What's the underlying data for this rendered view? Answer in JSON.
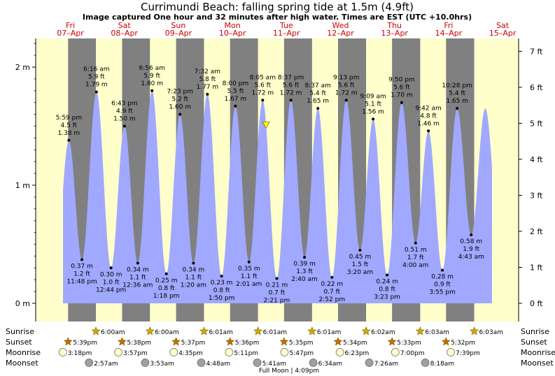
{
  "title": "Currimundi Beach: falling  spring tide at 1.5m (4.9ft)",
  "subtitle": "Image captured One hour and 32 minutes after high water. Times are EST (UTC +10.0hrs)",
  "chart_data": {
    "type": "area",
    "y_left_ticks": [
      "0 m",
      "1 m",
      "2 m"
    ],
    "y_right_ticks": [
      "0 ft",
      "1 ft",
      "2 ft",
      "3 ft",
      "4 ft",
      "5 ft",
      "6 ft",
      "7 ft"
    ],
    "ylim_m": [
      0,
      2.25
    ],
    "days": [
      {
        "dow": "Fri",
        "date": "07–Apr"
      },
      {
        "dow": "Sat",
        "date": "08–Apr"
      },
      {
        "dow": "Sun",
        "date": "09–Apr"
      },
      {
        "dow": "Mon",
        "date": "10–Apr"
      },
      {
        "dow": "Tue",
        "date": "11–Apr"
      },
      {
        "dow": "Wed",
        "date": "12–Apr"
      },
      {
        "dow": "Thu",
        "date": "13–Apr"
      },
      {
        "dow": "Fri",
        "date": "14–Apr"
      },
      {
        "dow": "Sat",
        "date": "15–Apr"
      }
    ],
    "tides": [
      {
        "type": "high",
        "day": 0,
        "time": "5:59 pm",
        "ft": "4.5 ft",
        "m": "1.38 m",
        "h": 1.38
      },
      {
        "type": "low",
        "day": 0,
        "time": "11:48 pm",
        "ft": "1.2 ft",
        "m": "0.37 m",
        "h": 0.37
      },
      {
        "type": "high",
        "day": 1,
        "time": "6:16 am",
        "ft": "5.9 ft",
        "m": "1.79 m",
        "h": 1.79
      },
      {
        "type": "low",
        "day": 1,
        "time": "12:44 pm",
        "ft": "1.0 ft",
        "m": "0.30 m",
        "h": 0.3
      },
      {
        "type": "high",
        "day": 1,
        "time": "6:43 pm",
        "ft": "4.9 ft",
        "m": "1.50 m",
        "h": 1.5
      },
      {
        "type": "low",
        "day": 2,
        "time": "12:36 am",
        "ft": "1.1 ft",
        "m": "0.34 m",
        "h": 0.34
      },
      {
        "type": "high",
        "day": 2,
        "time": "6:56 am",
        "ft": "5.9 ft",
        "m": "1.80 m",
        "h": 1.8
      },
      {
        "type": "low",
        "day": 2,
        "time": "1:18 pm",
        "ft": "0.8 ft",
        "m": "0.25 m",
        "h": 0.25
      },
      {
        "type": "high",
        "day": 2,
        "time": "7:23 pm",
        "ft": "5.2 ft",
        "m": "1.60 m",
        "h": 1.6
      },
      {
        "type": "low",
        "day": 3,
        "time": "1:20 am",
        "ft": "1.1 ft",
        "m": "0.34 m",
        "h": 0.34
      },
      {
        "type": "high",
        "day": 3,
        "time": "7:32 am",
        "ft": "5.8 ft",
        "m": "1.77 m",
        "h": 1.77
      },
      {
        "type": "low",
        "day": 3,
        "time": "1:50 pm",
        "ft": "0.8 ft",
        "m": "0.23 m",
        "h": 0.23
      },
      {
        "type": "high",
        "day": 3,
        "time": "8:00 pm",
        "ft": "5.5 ft",
        "m": "1.67 m",
        "h": 1.67
      },
      {
        "type": "low",
        "day": 4,
        "time": "2:01 am",
        "ft": "1.1 ft",
        "m": "0.35 m",
        "h": 0.35
      },
      {
        "type": "high",
        "day": 4,
        "time": "8:05 am",
        "ft": "5.6 ft",
        "m": "1.72 m",
        "h": 1.72
      },
      {
        "type": "low",
        "day": 4,
        "time": "2:21 pm",
        "ft": "0.7 ft",
        "m": "0.21 m",
        "h": 0.21
      },
      {
        "type": "high",
        "day": 4,
        "time": "8:37 pm",
        "ft": "5.6 ft",
        "m": "1.72 m",
        "h": 1.72
      },
      {
        "type": "low",
        "day": 5,
        "time": "2:40 am",
        "ft": "1.3 ft",
        "m": "0.39 m",
        "h": 0.39
      },
      {
        "type": "high",
        "day": 5,
        "time": "8:37 am",
        "ft": "5.4 ft",
        "m": "1.65 m",
        "h": 1.65
      },
      {
        "type": "low",
        "day": 5,
        "time": "2:52 pm",
        "ft": "0.7 ft",
        "m": "0.22 m",
        "h": 0.22
      },
      {
        "type": "high",
        "day": 5,
        "time": "9:13 pm",
        "ft": "5.6 ft",
        "m": "1.72 m",
        "h": 1.72
      },
      {
        "type": "low",
        "day": 6,
        "time": "3:20 am",
        "ft": "1.5 ft",
        "m": "0.45 m",
        "h": 0.45
      },
      {
        "type": "high",
        "day": 6,
        "time": "9:09 am",
        "ft": "5.1 ft",
        "m": "1.56 m",
        "h": 1.56
      },
      {
        "type": "low",
        "day": 6,
        "time": "3:23 pm",
        "ft": "0.8 ft",
        "m": "0.24 m",
        "h": 0.24
      },
      {
        "type": "high",
        "day": 6,
        "time": "9:50 pm",
        "ft": "5.6 ft",
        "m": "1.70 m",
        "h": 1.7
      },
      {
        "type": "low",
        "day": 7,
        "time": "4:00 am",
        "ft": "1.7 ft",
        "m": "0.51 m",
        "h": 0.51
      },
      {
        "type": "high",
        "day": 7,
        "time": "9:42 am",
        "ft": "4.8 ft",
        "m": "1.46 m",
        "h": 1.46
      },
      {
        "type": "low",
        "day": 7,
        "time": "3:55 pm",
        "ft": "0.9 ft",
        "m": "0.28 m",
        "h": 0.28
      },
      {
        "type": "high",
        "day": 7,
        "time": "10:28 pm",
        "ft": "5.4 ft",
        "m": "1.65 m",
        "h": 1.65
      },
      {
        "type": "low",
        "day": 8,
        "time": "4:43 am",
        "ft": "1.9 ft",
        "m": "0.58 m",
        "h": 0.58
      }
    ],
    "current": {
      "day": 4,
      "time": "9:37 am",
      "h": 1.5
    },
    "rows": {
      "sunrise": {
        "label": "Sunrise",
        "times": [
          "6:00am",
          "6:00am",
          "6:01am",
          "6:01am",
          "6:01am",
          "6:02am",
          "6:03am",
          "6:03am"
        ]
      },
      "sunset": {
        "label": "Sunset",
        "times": [
          "5:39pm",
          "5:38pm",
          "5:37pm",
          "5:36pm",
          "5:35pm",
          "5:34pm",
          "5:33pm",
          "5:32pm"
        ]
      },
      "moonrise": {
        "label": "Moonrise",
        "times": [
          "3:18pm",
          "3:57pm",
          "4:35pm",
          "5:11pm",
          "5:47pm",
          "6:23pm",
          "7:00pm",
          "7:39pm"
        ]
      },
      "moonset": {
        "label": "Moonset",
        "times": [
          "2:57am",
          "3:53am",
          "4:48am",
          "5:41am",
          "6:34am",
          "7:26am",
          "8:18am"
        ]
      }
    },
    "full_moon": "Full Moon | 4:09pm",
    "colors": {
      "day": "#ffffcc",
      "night": "#808080",
      "water": "#a0a8ff",
      "date": "#cc0000",
      "sun_marker": "#d4aa00",
      "sunset_marker": "#c07000",
      "moonrise_marker": "#ffffcc",
      "moonset_marker": "#a0a0a0"
    }
  }
}
